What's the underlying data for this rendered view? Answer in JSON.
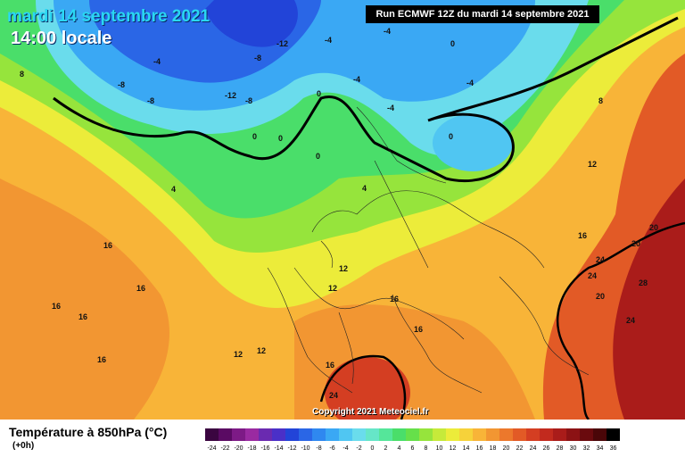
{
  "header": {
    "date": "mardi 14 septembre 2021",
    "time": "14:00 locale",
    "run": "Run ECMWF 12Z du mardi 14 septembre 2021"
  },
  "copyright": "Copyright 2021 Meteociel.fr",
  "legend": {
    "title": "Température à 850hPa (°C)",
    "subtitle": "(+0h)",
    "values": [
      "-24",
      "-22",
      "-20",
      "-18",
      "-16",
      "-14",
      "-12",
      "-10",
      "-8",
      "-6",
      "-4",
      "-2",
      "0",
      "2",
      "4",
      "6",
      "8",
      "10",
      "12",
      "14",
      "16",
      "18",
      "20",
      "22",
      "24",
      "26",
      "28",
      "30",
      "32",
      "34",
      "36"
    ],
    "colors": [
      "#3a0540",
      "#5a0a63",
      "#7d1a86",
      "#9a2aa1",
      "#6a2ab0",
      "#4a30c8",
      "#2244d8",
      "#2a66e6",
      "#2f88f0",
      "#3aa8f4",
      "#50c6f2",
      "#6adcec",
      "#66e6c8",
      "#55e69a",
      "#4ade6a",
      "#66e04a",
      "#96e43c",
      "#c6ea3a",
      "#ecec3a",
      "#f6d23a",
      "#f8b438",
      "#f29632",
      "#ec782c",
      "#e25a26",
      "#d43e22",
      "#c22a1e",
      "#aa1c1a",
      "#8c1214",
      "#6a0a0e",
      "#4a0608",
      "#000000"
    ]
  },
  "isotherm_labels": [
    "-12",
    "-8",
    "-8",
    "-8",
    "-12",
    "-8",
    "-4",
    "-4",
    "-4",
    "-4",
    "-4",
    "-4",
    "0",
    "0",
    "0",
    "0",
    "0",
    "0",
    "4",
    "4",
    "8",
    "8",
    "12",
    "12",
    "12",
    "12",
    "12",
    "16",
    "16",
    "16",
    "16",
    "16",
    "16",
    "16",
    "16",
    "16",
    "20",
    "20",
    "20",
    "24",
    "24",
    "24",
    "24",
    "28"
  ]
}
